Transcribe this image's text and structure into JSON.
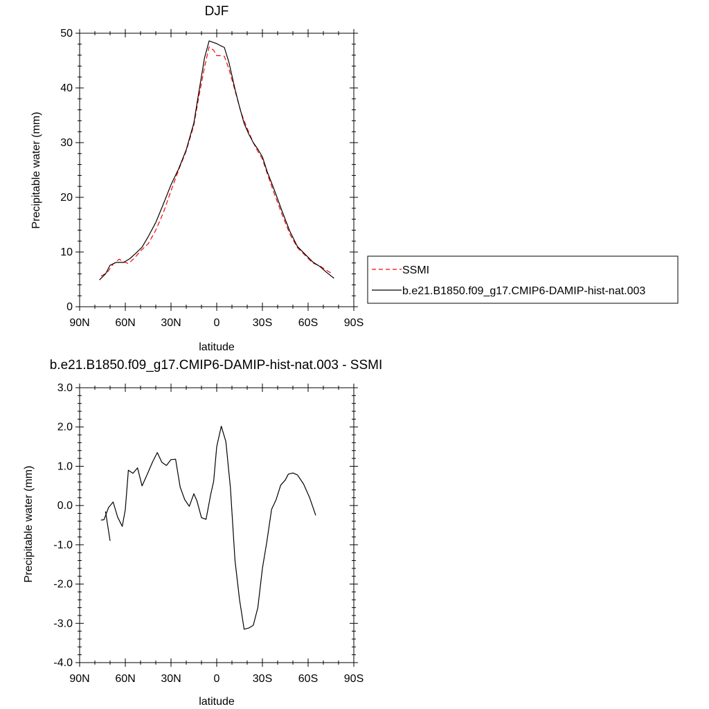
{
  "chart_data": [
    {
      "type": "line",
      "title": "DJF",
      "xlabel": "latitude",
      "ylabel": "Precipitable water (mm)",
      "xlim": [
        90,
        -90
      ],
      "ylim": [
        0,
        50
      ],
      "x_ticks": [
        90,
        60,
        30,
        0,
        -30,
        -60,
        -90
      ],
      "x_tick_labels": [
        "90N",
        "60N",
        "30N",
        "0",
        "30S",
        "60S",
        "90S"
      ],
      "y_ticks": [
        0,
        10,
        20,
        30,
        40,
        50
      ],
      "y_tick_labels": [
        "0",
        "10",
        "20",
        "30",
        "40",
        "50"
      ],
      "legend": {
        "placement": "right"
      },
      "series": [
        {
          "name": "SSMI",
          "style": "dashed",
          "color": "#ff0000",
          "x": [
            76,
            72,
            68,
            64,
            62,
            58,
            54,
            50,
            45,
            40,
            35,
            30,
            25,
            20,
            15,
            12,
            8,
            5,
            2,
            0,
            -2,
            -5,
            -8,
            -12,
            -16,
            -20,
            -24,
            -27,
            -30,
            -33,
            -38,
            -43,
            -48,
            -53,
            -58,
            -63,
            -68,
            -73,
            -76
          ],
          "values": [
            5.6,
            6.2,
            7.8,
            8.7,
            8.3,
            7.9,
            8.9,
            10.2,
            11.5,
            14.0,
            17.2,
            21.2,
            25.0,
            28.5,
            33.2,
            38.0,
            43.8,
            47.5,
            46.9,
            45.9,
            45.9,
            45.8,
            43.5,
            39.5,
            35.5,
            32.6,
            30.0,
            28.4,
            27.0,
            24.5,
            20.5,
            16.8,
            13.3,
            10.8,
            9.4,
            8.0,
            7.4,
            6.5,
            6.0
          ]
        },
        {
          "name": "b.e21.B1850.f09_g17.CMIP6-DAMIP-hist-nat.003",
          "style": "solid",
          "color": "#000000",
          "x": [
            77,
            73,
            70,
            66,
            61,
            57,
            53,
            49,
            45,
            40,
            35,
            30,
            25,
            20,
            15,
            12,
            8,
            5,
            2,
            0,
            -2,
            -5,
            -8,
            -12,
            -15,
            -18,
            -21,
            -24,
            -27,
            -30,
            -33,
            -38,
            -43,
            -48,
            -53,
            -58,
            -63,
            -68,
            -72,
            -77
          ],
          "values": [
            4.9,
            6.0,
            7.6,
            8.1,
            8.1,
            8.8,
            9.8,
            10.9,
            12.8,
            15.4,
            18.8,
            22.3,
            25.2,
            28.7,
            33.6,
            38.8,
            45.5,
            48.6,
            48.3,
            48.1,
            47.8,
            47.4,
            44.7,
            39.8,
            36.5,
            33.5,
            31.6,
            30.0,
            28.8,
            27.4,
            24.8,
            21.2,
            17.4,
            13.8,
            11.0,
            9.6,
            8.2,
            7.3,
            6.3,
            5.2
          ]
        }
      ]
    },
    {
      "type": "line",
      "title": "b.e21.B1850.f09_g17.CMIP6-DAMIP-hist-nat.003 - SSMI",
      "xlabel": "latitude",
      "ylabel": "Precipitable water (mm)",
      "xlim": [
        90,
        -90
      ],
      "ylim": [
        -4.0,
        3.0
      ],
      "x_ticks": [
        90,
        60,
        30,
        0,
        -30,
        -60,
        -90
      ],
      "x_tick_labels": [
        "90N",
        "60N",
        "30N",
        "0",
        "30S",
        "60S",
        "90S"
      ],
      "y_ticks": [
        -4,
        -3,
        -2,
        -1,
        0,
        1,
        2,
        3
      ],
      "y_tick_labels": [
        "-4.0",
        "-3.0",
        "-2.0",
        "-1.0",
        "0.0",
        "1.0",
        "2.0",
        "3.0"
      ],
      "series": [
        {
          "style": "solid",
          "color": "#000000",
          "segments": [
            {
              "x": [
                76,
                74,
                71,
                68,
                65,
                62,
                60,
                58,
                55,
                52,
                49,
                46,
                42,
                39,
                36,
                33,
                30,
                27,
                24,
                21,
                18,
                15,
                13,
                10,
                7,
                4,
                2,
                0,
                -3,
                -6,
                -9,
                -12,
                -15,
                -18,
                -21,
                -24,
                -27,
                -30,
                -33,
                -36,
                -39,
                -42,
                -45,
                -47,
                -50,
                -53,
                -57,
                -61,
                -65
              ],
              "values": [
                -0.37,
                -0.36,
                -0.05,
                0.09,
                -0.3,
                -0.53,
                -0.1,
                0.9,
                0.82,
                0.96,
                0.5,
                0.76,
                1.12,
                1.35,
                1.1,
                1.02,
                1.17,
                1.18,
                0.47,
                0.15,
                -0.02,
                0.3,
                0.12,
                -0.31,
                -0.35,
                0.27,
                0.62,
                1.5,
                2.02,
                1.63,
                0.45,
                -1.4,
                -2.4,
                -3.15,
                -3.12,
                -3.05,
                -2.6,
                -1.6,
                -0.9,
                -0.1,
                0.15,
                0.52,
                0.65,
                0.8,
                0.83,
                0.78,
                0.55,
                0.2,
                -0.25
              ]
            },
            {
              "x": [
                70,
                73
              ],
              "values": [
                -0.9,
                -0.15
              ]
            }
          ]
        }
      ]
    }
  ]
}
